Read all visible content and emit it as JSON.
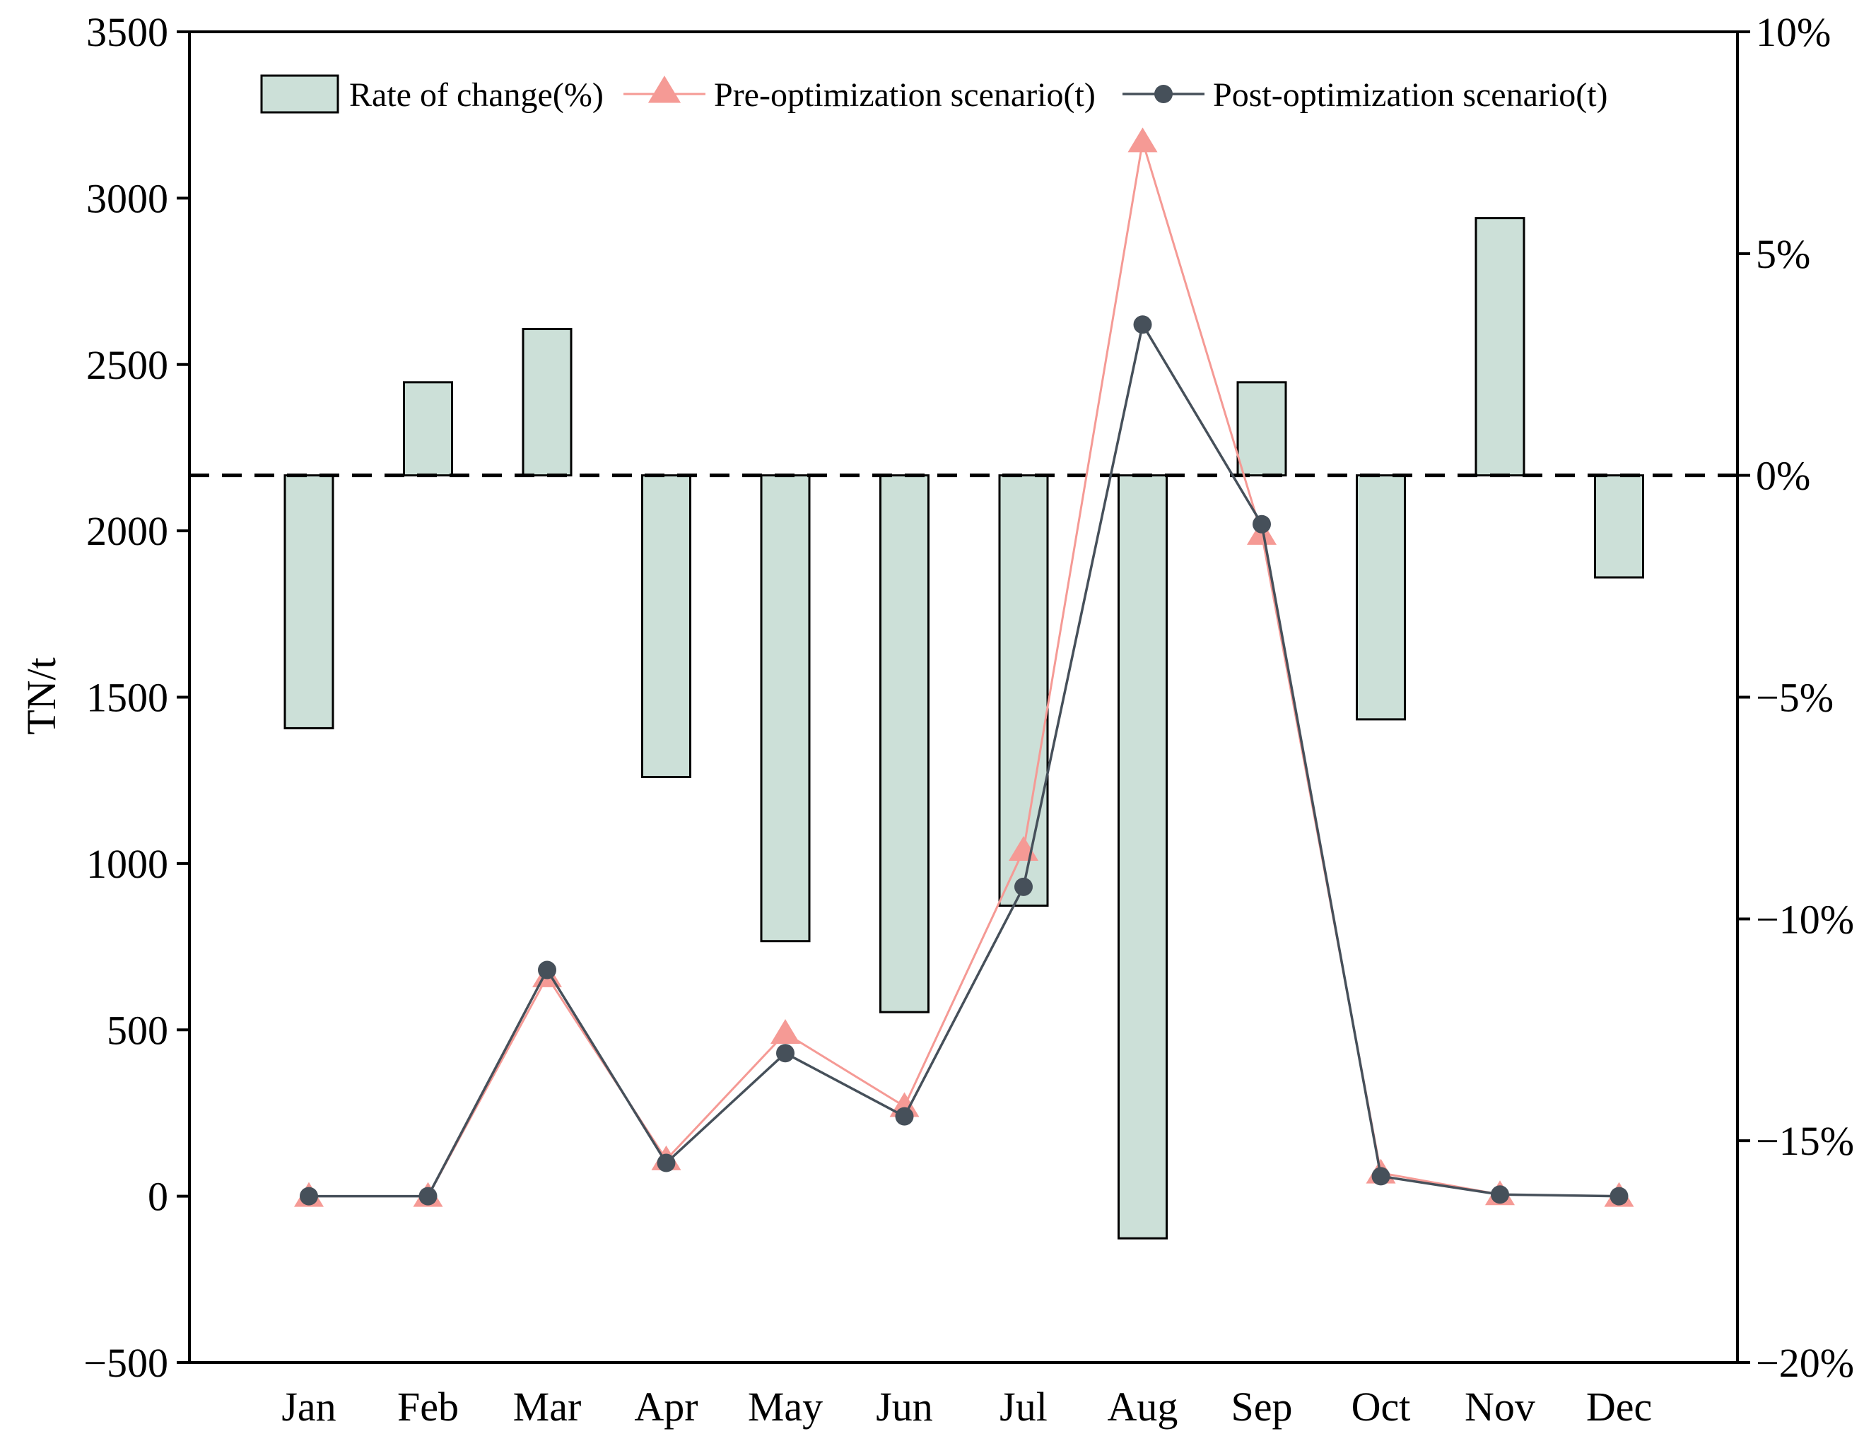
{
  "chart_data": {
    "type": "bar+line",
    "title": "",
    "categories": [
      "Jan",
      "Feb",
      "Mar",
      "Apr",
      "May",
      "Jun",
      "Jul",
      "Aug",
      "Sep",
      "Oct",
      "Nov",
      "Dec"
    ],
    "ylabel": "TN/t",
    "xlabel": "",
    "ylim": [
      -500,
      3500
    ],
    "y2lim": [
      -20,
      10
    ],
    "y_ticks": [
      "−500",
      "0",
      "500",
      "1000",
      "1500",
      "2000",
      "2500",
      "3000",
      "3500"
    ],
    "y_tick_values": [
      -500,
      0,
      500,
      1000,
      1500,
      2000,
      2500,
      3000,
      3500
    ],
    "y2_ticks": [
      "−20%",
      "−15%",
      "−10%",
      "−5%",
      "0%",
      "5%",
      "10%"
    ],
    "y2_tick_values": [
      -20,
      -15,
      -10,
      -5,
      0,
      5,
      10
    ],
    "reference_line": {
      "axis": "y2",
      "value": 0,
      "style": "dashed"
    },
    "legend_position": "top",
    "series": [
      {
        "name": "Rate of change(%)",
        "kind": "bar",
        "axis": "y2",
        "color": "#cce0d8",
        "values": [
          -5.7,
          2.1,
          3.3,
          -6.8,
          -10.5,
          -12.1,
          -9.7,
          -17.2,
          2.1,
          -5.5,
          5.8,
          -2.3
        ]
      },
      {
        "name": "Pre-optimization scenario(t)",
        "kind": "line",
        "axis": "y",
        "marker": "triangle",
        "color": "#f59a95",
        "values": [
          0,
          0,
          660,
          110,
          490,
          270,
          1040,
          3170,
          1990,
          70,
          5,
          0
        ]
      },
      {
        "name": "Post-optimization scenario(t)",
        "kind": "line",
        "axis": "y",
        "marker": "circle",
        "color": "#46505a",
        "values": [
          0,
          0,
          680,
          100,
          430,
          240,
          930,
          2620,
          2020,
          60,
          5,
          0
        ]
      }
    ]
  }
}
